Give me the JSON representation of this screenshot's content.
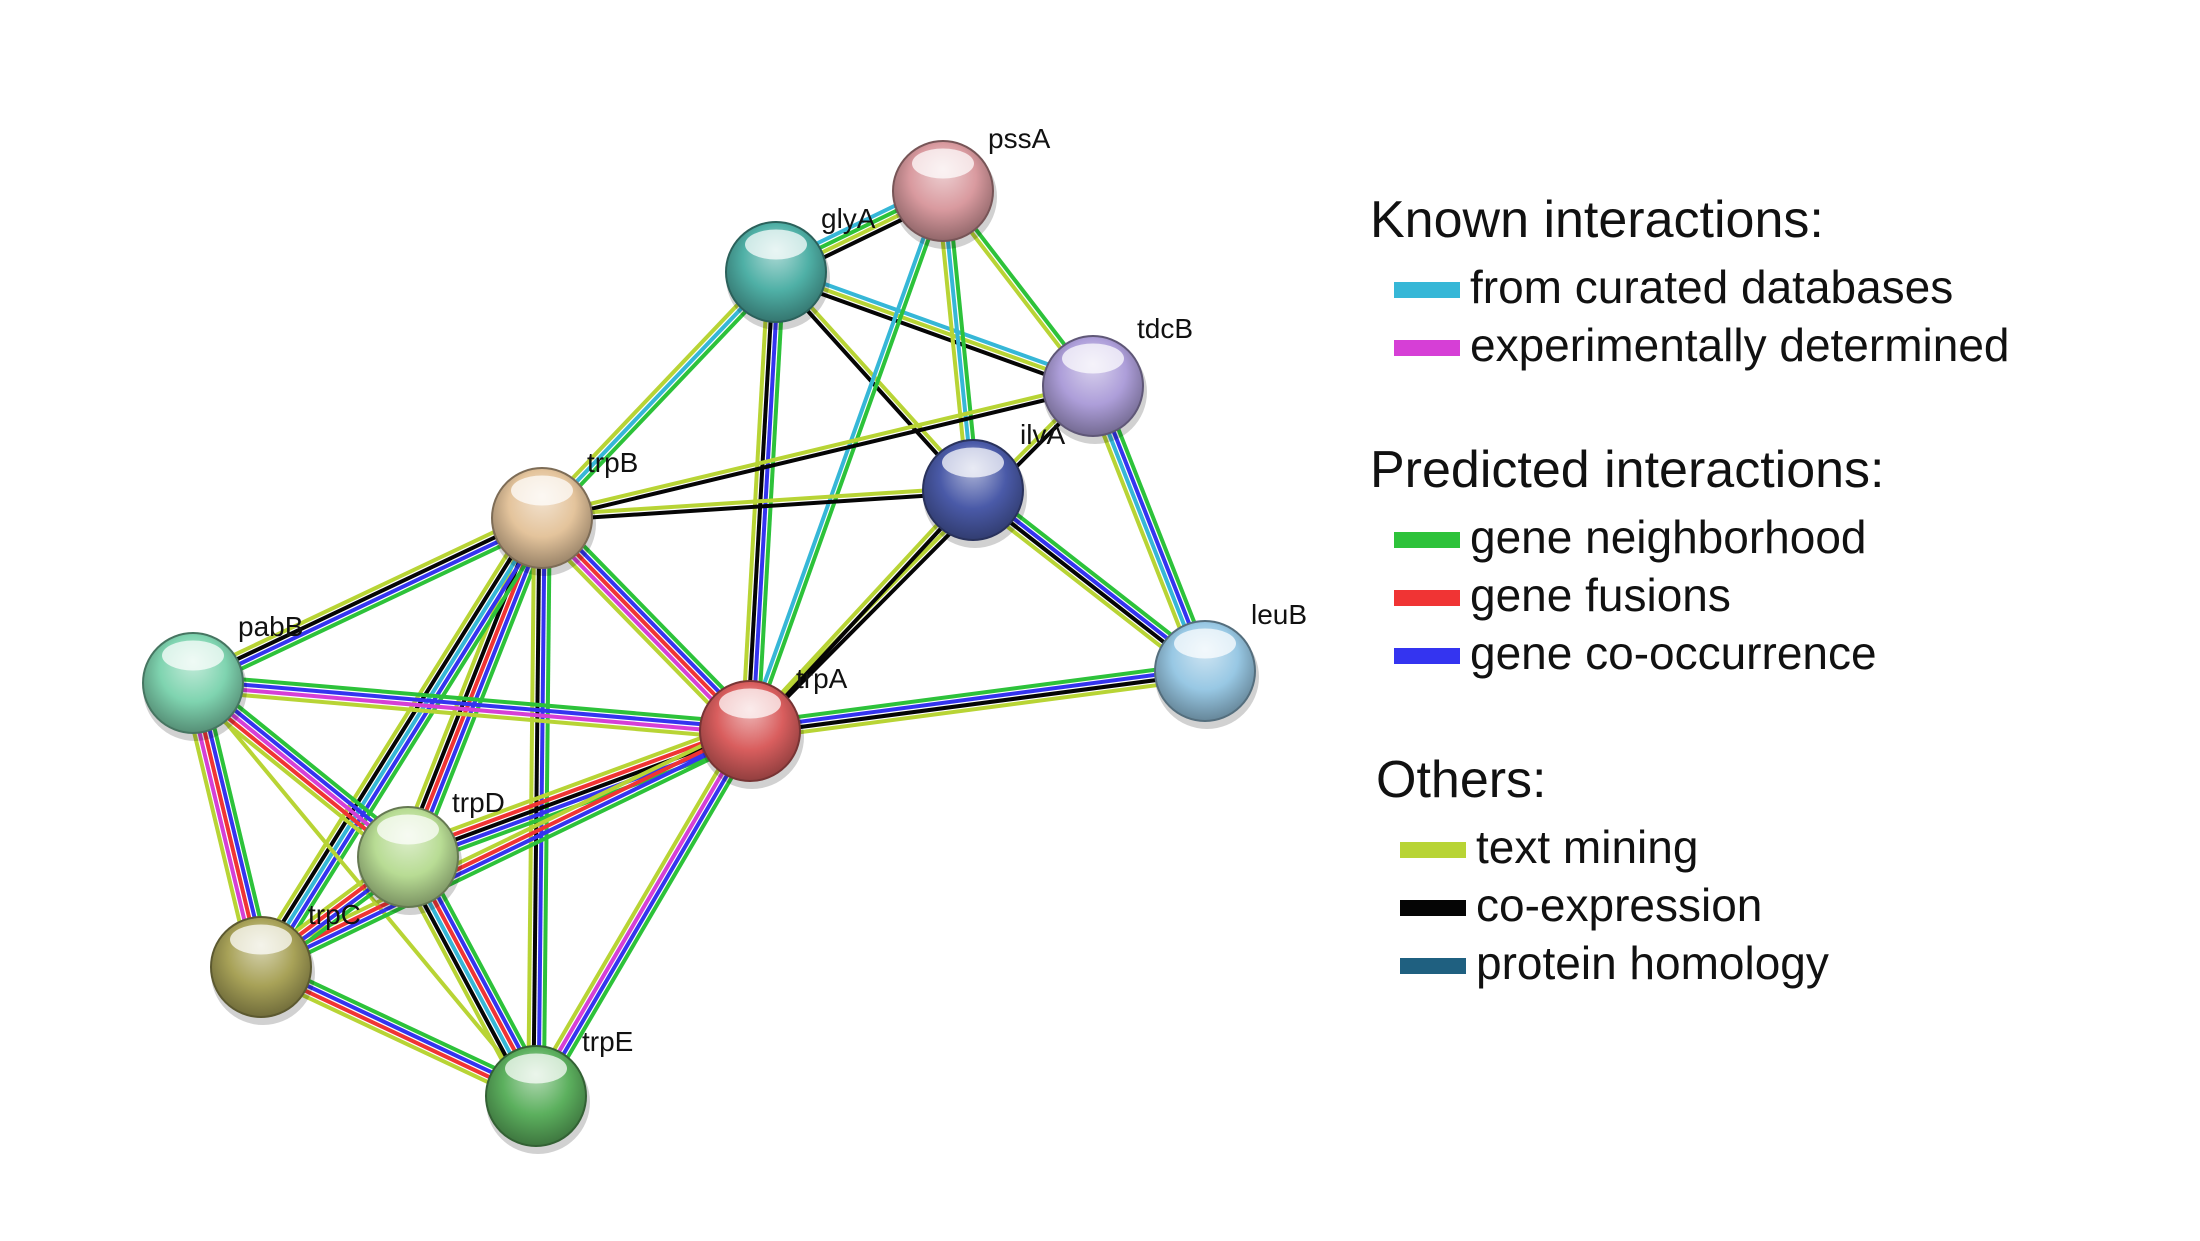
{
  "nodes": [
    {
      "id": "pssA",
      "label": "pssA",
      "color": "#d99a9f"
    },
    {
      "id": "glyA",
      "label": "glyA",
      "color": "#4fb0a6"
    },
    {
      "id": "tdcB",
      "label": "tdcB",
      "color": "#ad9ed9"
    },
    {
      "id": "ilvA",
      "label": "ilvA",
      "color": "#4a5aa8"
    },
    {
      "id": "trpB",
      "label": "trpB",
      "color": "#e4c49c"
    },
    {
      "id": "pabB",
      "label": "pabB",
      "color": "#7fd4b0"
    },
    {
      "id": "trpA",
      "label": "trpA",
      "color": "#d95e5e"
    },
    {
      "id": "leuB",
      "label": "leuB",
      "color": "#98c8e4"
    },
    {
      "id": "trpD",
      "label": "trpD",
      "color": "#b8dc94"
    },
    {
      "id": "trpC",
      "label": "trpC",
      "color": "#a8a258"
    },
    {
      "id": "trpE",
      "label": "trpE",
      "color": "#5cb05e"
    }
  ],
  "edges": [
    {
      "source": "glyA",
      "target": "pssA",
      "evidence": [
        "curated",
        "neighborhood",
        "text",
        "coexpression"
      ]
    },
    {
      "source": "glyA",
      "target": "tdcB",
      "evidence": [
        "curated",
        "text",
        "coexpression"
      ]
    },
    {
      "source": "glyA",
      "target": "ilvA",
      "evidence": [
        "text",
        "coexpression"
      ]
    },
    {
      "source": "glyA",
      "target": "trpB",
      "evidence": [
        "neighborhood",
        "curated",
        "text"
      ]
    },
    {
      "source": "glyA",
      "target": "trpA",
      "evidence": [
        "neighborhood",
        "cooccurrence",
        "coexpression",
        "text"
      ]
    },
    {
      "source": "pssA",
      "target": "tdcB",
      "evidence": [
        "neighborhood",
        "text"
      ]
    },
    {
      "source": "pssA",
      "target": "ilvA",
      "evidence": [
        "neighborhood",
        "curated",
        "text"
      ]
    },
    {
      "source": "pssA",
      "target": "trpA",
      "evidence": [
        "neighborhood",
        "curated"
      ]
    },
    {
      "source": "tdcB",
      "target": "trpB",
      "evidence": [
        "coexpression",
        "text"
      ]
    },
    {
      "source": "tdcB",
      "target": "leuB",
      "evidence": [
        "neighborhood",
        "cooccurrence",
        "curated",
        "text"
      ]
    },
    {
      "source": "tdcB",
      "target": "trpA",
      "evidence": [
        "coexpression",
        "text"
      ]
    },
    {
      "source": "ilvA",
      "target": "trpB",
      "evidence": [
        "coexpression",
        "text"
      ]
    },
    {
      "source": "ilvA",
      "target": "trpA",
      "evidence": [
        "coexpression",
        "text"
      ]
    },
    {
      "source": "ilvA",
      "target": "leuB",
      "evidence": [
        "neighborhood",
        "cooccurrence",
        "coexpression",
        "text"
      ]
    },
    {
      "source": "trpB",
      "target": "pabB",
      "evidence": [
        "neighborhood",
        "cooccurrence",
        "coexpression",
        "text"
      ]
    },
    {
      "source": "trpB",
      "target": "trpA",
      "evidence": [
        "neighborhood",
        "cooccurrence",
        "fusion",
        "experimental",
        "text"
      ]
    },
    {
      "source": "trpB",
      "target": "trpD",
      "evidence": [
        "neighborhood",
        "cooccurrence",
        "fusion",
        "coexpression",
        "text"
      ]
    },
    {
      "source": "trpB",
      "target": "trpC",
      "evidence": [
        "neighborhood",
        "cooccurrence",
        "curated",
        "coexpression",
        "text"
      ]
    },
    {
      "source": "trpB",
      "target": "trpE",
      "evidence": [
        "neighborhood",
        "cooccurrence",
        "coexpression",
        "text"
      ]
    },
    {
      "source": "pabB",
      "target": "trpA",
      "evidence": [
        "neighborhood",
        "cooccurrence",
        "experimental",
        "text"
      ]
    },
    {
      "source": "pabB",
      "target": "trpD",
      "evidence": [
        "neighborhood",
        "cooccurrence",
        "experimental",
        "fusion",
        "text"
      ]
    },
    {
      "source": "pabB",
      "target": "trpC",
      "evidence": [
        "neighborhood",
        "cooccurrence",
        "fusion",
        "experimental",
        "text"
      ]
    },
    {
      "source": "pabB",
      "target": "trpE",
      "evidence": [
        "text"
      ]
    },
    {
      "source": "trpA",
      "target": "leuB",
      "evidence": [
        "neighborhood",
        "cooccurrence",
        "coexpression",
        "text"
      ]
    },
    {
      "source": "trpA",
      "target": "trpD",
      "evidence": [
        "neighborhood",
        "cooccurrence",
        "coexpression",
        "fusion",
        "text"
      ]
    },
    {
      "source": "trpA",
      "target": "trpC",
      "evidence": [
        "neighborhood",
        "cooccurrence",
        "fusion",
        "text"
      ]
    },
    {
      "source": "trpA",
      "target": "trpE",
      "evidence": [
        "neighborhood",
        "cooccurrence",
        "experimental",
        "text"
      ]
    },
    {
      "source": "trpD",
      "target": "trpC",
      "evidence": [
        "neighborhood",
        "cooccurrence",
        "fusion",
        "text"
      ]
    },
    {
      "source": "trpD",
      "target": "trpE",
      "evidence": [
        "neighborhood",
        "cooccurrence",
        "fusion",
        "curated",
        "coexpression",
        "text"
      ]
    },
    {
      "source": "trpC",
      "target": "trpE",
      "evidence": [
        "neighborhood",
        "cooccurrence",
        "fusion",
        "text"
      ]
    }
  ],
  "legend": {
    "known": {
      "heading": "Known interactions:",
      "items": [
        {
          "key": "curated",
          "label": "from curated databases",
          "color": "#36b7d7"
        },
        {
          "key": "experimental",
          "label": "experimentally determined",
          "color": "#d63fd6"
        }
      ]
    },
    "predicted": {
      "heading": "Predicted interactions:",
      "items": [
        {
          "key": "neighborhood",
          "label": "gene neighborhood",
          "color": "#2dc23a"
        },
        {
          "key": "fusion",
          "label": "gene fusions",
          "color": "#f03434"
        },
        {
          "key": "cooccurrence",
          "label": "gene co-occurrence",
          "color": "#3434f0"
        }
      ]
    },
    "others": {
      "heading": "Others:",
      "items": [
        {
          "key": "text",
          "label": "text mining",
          "color": "#b8d435"
        },
        {
          "key": "coexpression",
          "label": "co-expression",
          "color": "#050505"
        },
        {
          "key": "homology",
          "label": "protein homology",
          "color": "#1f6080"
        }
      ]
    }
  }
}
